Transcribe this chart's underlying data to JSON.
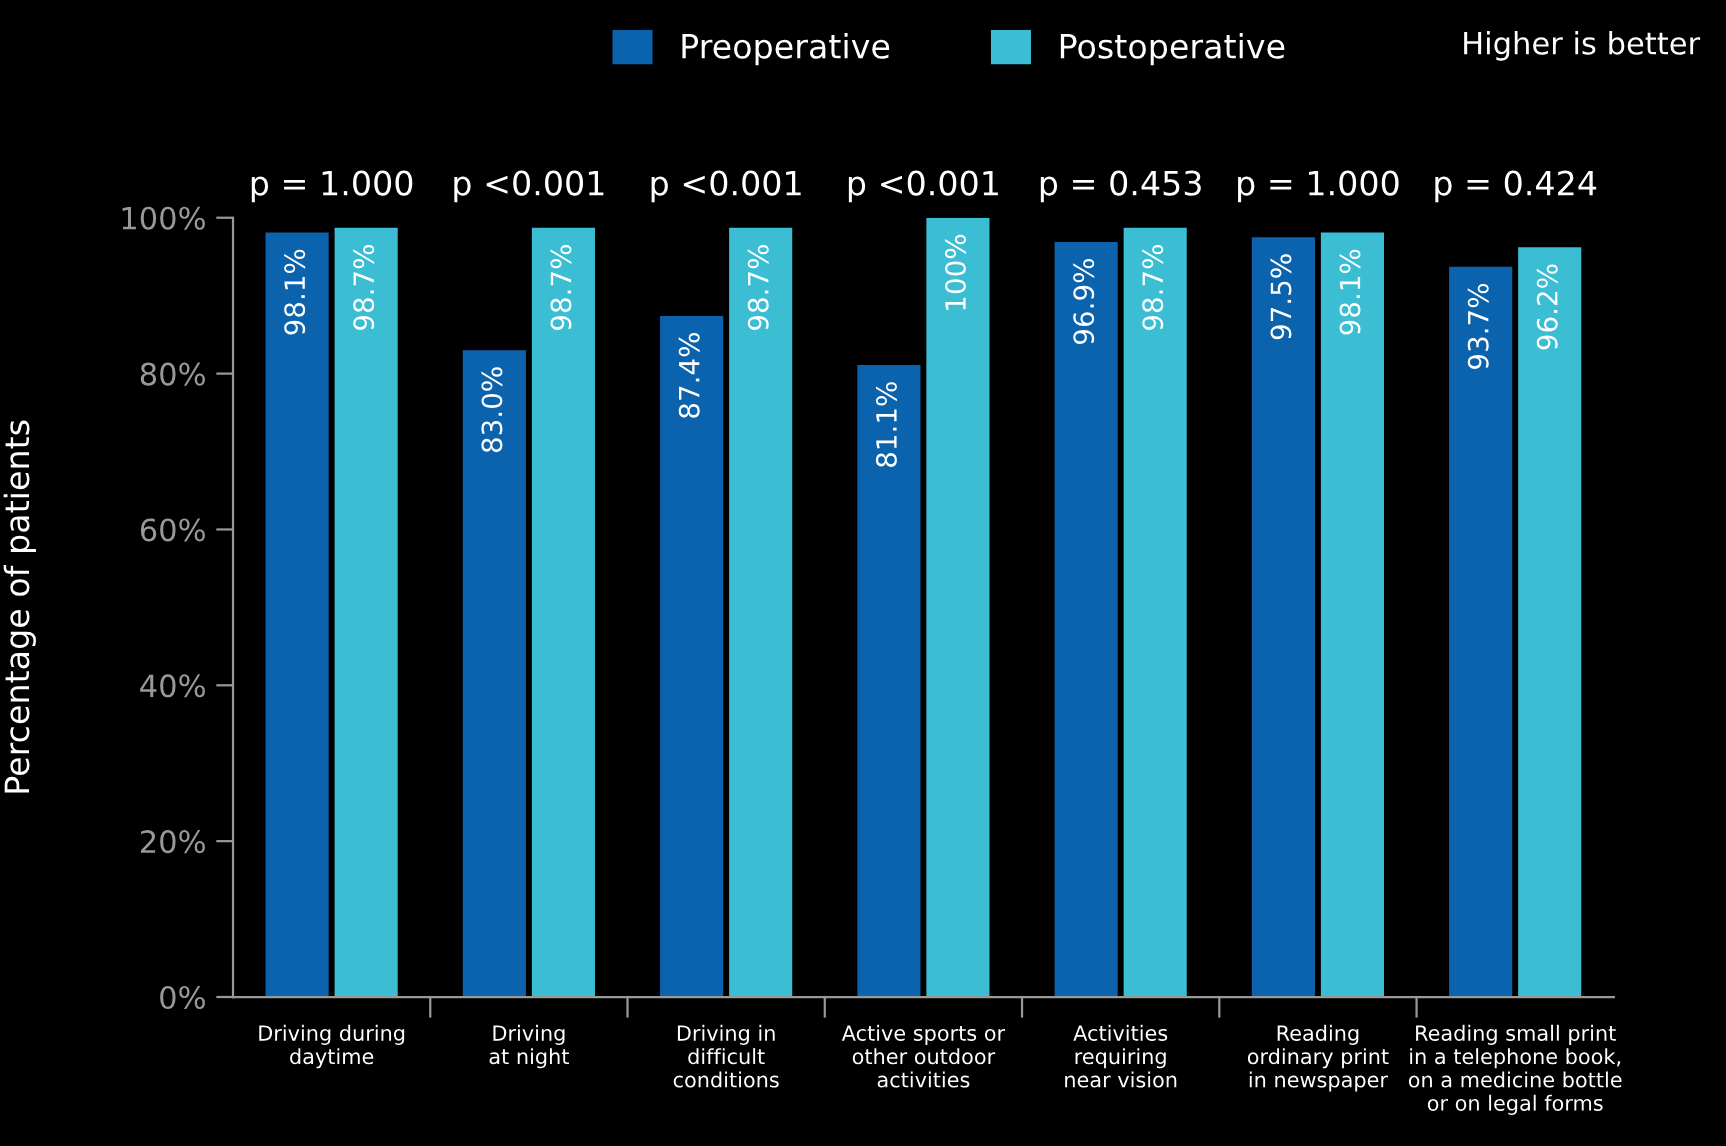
{
  "chart_data": {
    "type": "bar",
    "categories": [
      "Driving during\ndaytime",
      "Driving\nat night",
      "Driving in\ndifficult\nconditions",
      "Active sports or\nother outdoor\nactivities",
      "Activities\nrequiring\nnear vision",
      "Reading\nordinary print\nin newspaper",
      "Reading small print\nin a telephone book,\non a medicine bottle\nor on legal forms"
    ],
    "series": [
      {
        "name": "Preoperative",
        "color": "#0b63ad",
        "values": [
          98.1,
          83.0,
          87.4,
          81.1,
          96.9,
          97.5,
          93.7
        ],
        "value_labels": [
          "98.1%",
          "83.0%",
          "87.4%",
          "81.1%",
          "96.9%",
          "97.5%",
          "93.7%"
        ]
      },
      {
        "name": "Postoperative",
        "color": "#3bbdd3",
        "values": [
          98.7,
          98.7,
          98.7,
          100,
          98.7,
          98.1,
          96.2
        ],
        "value_labels": [
          "98.7%",
          "98.7%",
          "98.7%",
          "100%",
          "98.7%",
          "98.1%",
          "96.2%"
        ]
      }
    ],
    "ylabel": "Percentage of patients",
    "ylim": [
      0,
      100
    ],
    "yticks": [
      {
        "value": 0,
        "label": "0%"
      },
      {
        "value": 20,
        "label": "20%"
      },
      {
        "value": 40,
        "label": "40%"
      },
      {
        "value": 60,
        "label": "60%"
      },
      {
        "value": 80,
        "label": "80%"
      },
      {
        "value": 100,
        "label": "100%"
      }
    ],
    "grid": false,
    "legend": "top",
    "annotations": [
      "p = 1.000",
      "p <0.001",
      "p <0.001",
      "p <0.001",
      "p = 0.453",
      "p = 1.000",
      "p = 0.424",
      "Higher is better"
    ]
  }
}
